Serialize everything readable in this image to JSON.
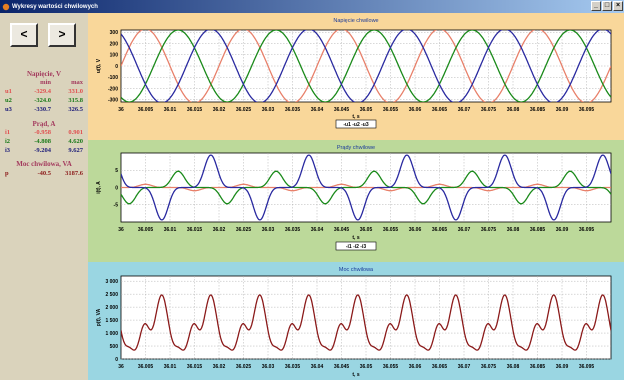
{
  "window": {
    "title": "Wykresy wartości chwilowych"
  },
  "nav": {
    "prev_label": "<",
    "next_label": ">"
  },
  "stats": {
    "voltage": {
      "heading": "Napięcie, V",
      "col_min": "min",
      "col_max": "max",
      "rows": [
        {
          "label": "u1",
          "min": "-329.4",
          "max": "331.0",
          "color": "#e05050"
        },
        {
          "label": "u2",
          "min": "-324.0",
          "max": "315.8",
          "color": "#1a7a1a"
        },
        {
          "label": "u3",
          "min": "-330.7",
          "max": "326.5",
          "color": "#20207a"
        }
      ]
    },
    "current": {
      "heading": "Prąd, A",
      "rows": [
        {
          "label": "i1",
          "min": "-0.958",
          "max": "0.901",
          "color": "#e05050"
        },
        {
          "label": "i2",
          "min": "-4.808",
          "max": "4.620",
          "color": "#1a7a1a"
        },
        {
          "label": "i3",
          "min": "-9.204",
          "max": "9.627",
          "color": "#20207a"
        }
      ]
    },
    "power": {
      "heading": "Moc chwilowa, VA",
      "rows": [
        {
          "label": "p",
          "min": "-40.5",
          "max": "3187.6",
          "color": "#8b1a1a"
        }
      ]
    }
  },
  "x_ticks": [
    "36",
    "36.005",
    "36.01",
    "36.015",
    "36.02",
    "36.025",
    "36.03",
    "36.035",
    "36.04",
    "36.045",
    "36.05",
    "36.055",
    "36.06",
    "36.065",
    "36.07",
    "36.075",
    "36.08",
    "36.085",
    "36.09",
    "36.095"
  ],
  "chart_data": [
    {
      "type": "line",
      "title": "Napięcie chwilowe",
      "xlabel": "t, s",
      "ylabel": "u(t), V",
      "xlim": [
        36,
        36.1
      ],
      "ylim": [
        -320,
        320
      ],
      "yticks": [
        "300",
        "200",
        "100",
        "0",
        "-100",
        "-200",
        "-300"
      ],
      "legend": "-u1 -u2 -u3",
      "series": [
        {
          "name": "u1",
          "color": "#e8806a",
          "amplitude": 330,
          "frequency": 50,
          "phase_deg": 0
        },
        {
          "name": "u2",
          "color": "#1a8a1a",
          "amplitude": 320,
          "frequency": 50,
          "phase_deg": -120
        },
        {
          "name": "u3",
          "color": "#2a2aa0",
          "amplitude": 328,
          "frequency": 50,
          "phase_deg": 120
        }
      ]
    },
    {
      "type": "line",
      "title": "Prądy chwilowe",
      "xlabel": "t, s",
      "ylabel": "i(t), A",
      "xlim": [
        36,
        36.1
      ],
      "ylim": [
        -10,
        10
      ],
      "yticks": [
        "5",
        "0",
        "-5"
      ],
      "legend": "-i1 -i2 -i3",
      "series": [
        {
          "name": "i1",
          "color": "#e8806a",
          "amplitude": 0.93,
          "frequency": 50,
          "phase_deg": 0
        },
        {
          "name": "i2",
          "color": "#1a8a1a",
          "amplitude": 4.7,
          "frequency": 50,
          "phase_deg": -120
        },
        {
          "name": "i3",
          "color": "#2a2aa0",
          "amplitude": 9.4,
          "frequency": 50,
          "phase_deg": 120
        }
      ]
    },
    {
      "type": "line",
      "title": "Moc chwilowa",
      "xlabel": "t, s",
      "ylabel": "p(t), VA",
      "xlim": [
        36,
        36.1
      ],
      "ylim": [
        0,
        3200
      ],
      "yticks": [
        "3 000",
        "2 500",
        "2 000",
        "1 500",
        "1 000",
        "500",
        "0"
      ],
      "series": [
        {
          "name": "p",
          "color": "#8b1a1a",
          "min": -40.5,
          "max": 3187.6
        }
      ]
    }
  ]
}
